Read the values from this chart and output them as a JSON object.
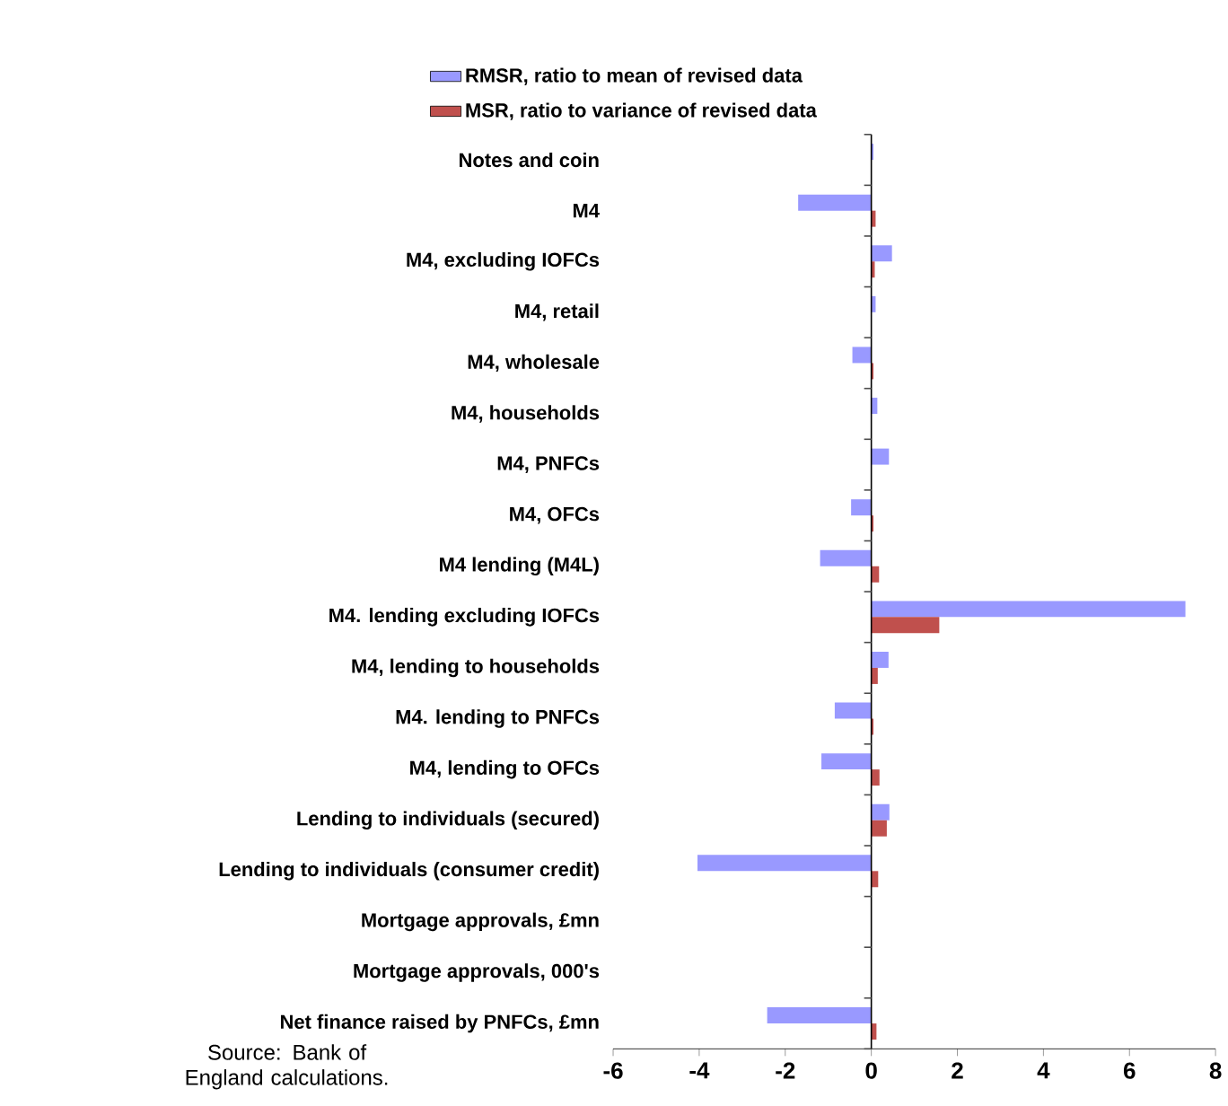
{
  "chart_data": {
    "type": "bar",
    "orientation": "horizontal",
    "categories": [
      "Notes and coin",
      "M4",
      "M4, excluding IOFCs",
      "M4, retail",
      "M4, wholesale",
      "M4, households",
      "M4, PNFCs",
      "M4, OFCs",
      "M4 lending (M4L)",
      "M4. lending excluding IOFCs",
      "M4, lending to households",
      "M4. lending to PNFCs",
      "M4, lending to OFCs",
      "Lending to individuals (secured)",
      "Lending to individuals (consumer credit)",
      "Mortgage approvals, £mn",
      "Mortgage approvals, 000's",
      "Net finance raised by PNFCs, £mn"
    ],
    "series": [
      {
        "name": "RMSR, ratio to mean of revised data",
        "color": "#9999ff",
        "values": [
          0.05,
          -1.7,
          0.48,
          0.1,
          -0.44,
          0.14,
          0.41,
          -0.47,
          -1.19,
          7.3,
          0.4,
          -0.85,
          -1.16,
          0.42,
          -4.04,
          0,
          0,
          -2.42
        ]
      },
      {
        "name": "MSR, ratio to variance of revised data",
        "color": "#c0504d",
        "values": [
          0,
          0.1,
          0.08,
          0,
          0.05,
          0,
          0,
          0.05,
          0.18,
          1.58,
          0.15,
          0.05,
          0.19,
          0.36,
          0.16,
          0,
          0,
          0.12
        ]
      }
    ],
    "xlim": [
      -6,
      8
    ],
    "xticks": [
      -6,
      -4,
      -2,
      0,
      2,
      4,
      6,
      8
    ],
    "legend": "top",
    "annotations": [
      "Source:  Bank of England calculations."
    ]
  }
}
